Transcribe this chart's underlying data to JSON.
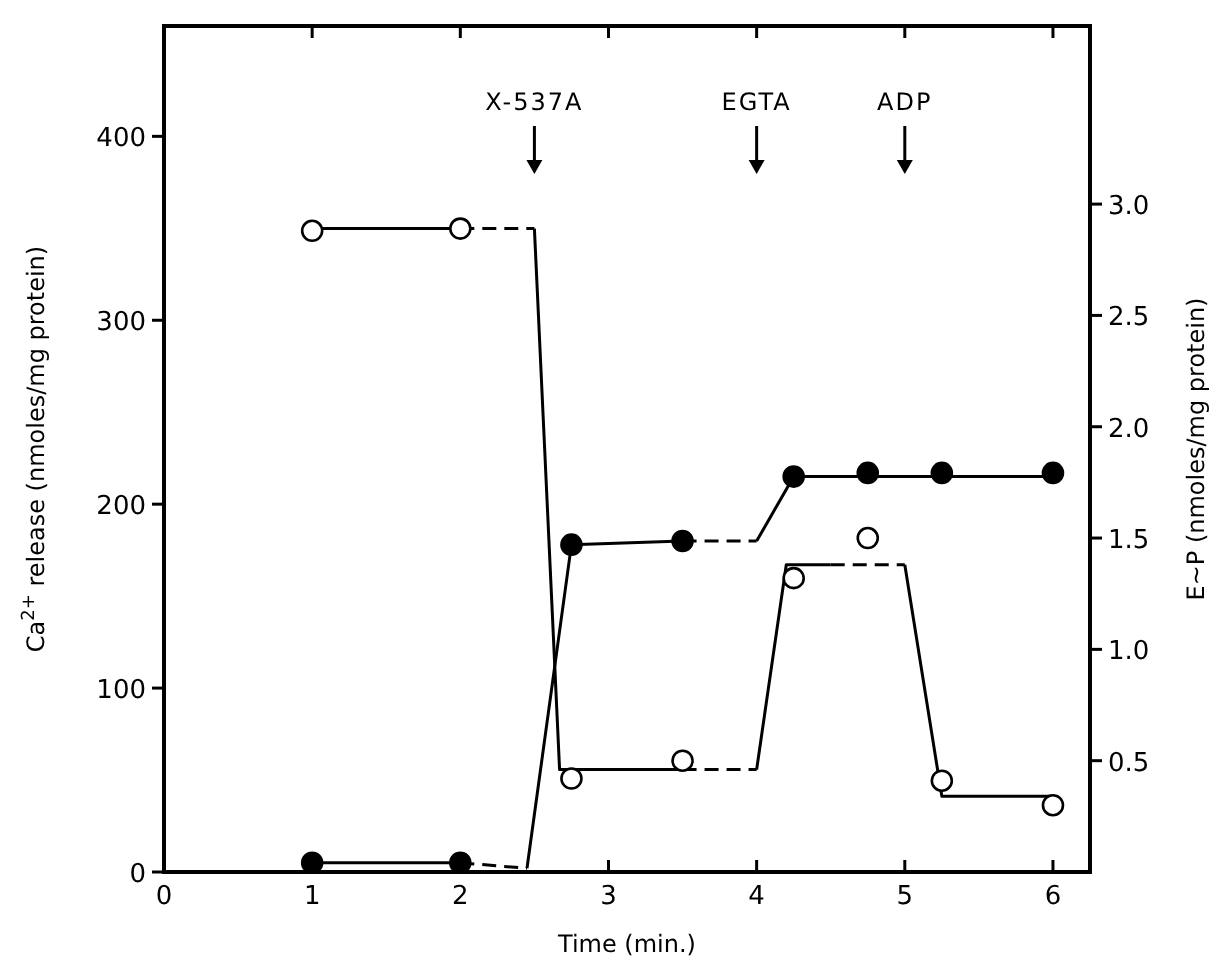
{
  "chart_data": {
    "type": "scatter",
    "xlabel": "Time (min.)",
    "ylabel": "Ca$^{2+}$ release (nmoles/mg protein)",
    "y2label": "E∼P (nmoles/mg protein)",
    "xlim": [
      0,
      6.25
    ],
    "xticks": [
      0,
      1,
      2,
      3,
      4,
      5,
      6
    ],
    "ylim": [
      0,
      460
    ],
    "yticks": [
      0,
      100,
      200,
      300,
      400
    ],
    "y2lim": [
      0,
      3.8
    ],
    "y2ticks": [
      0.5,
      {
        "value": 1,
        "label": "1.0"
      },
      1.5,
      {
        "value": 2,
        "label": "2.0"
      },
      2.5,
      {
        "value": 3,
        "label": "3.0"
      }
    ],
    "grid": false,
    "marker": "circle",
    "series": [
      {
        "type": "line",
        "color": "#000000",
        "line_style": "solid",
        "marker": "none",
        "x": [
          1,
          2
        ],
        "values": [
          5,
          5
        ]
      },
      {
        "type": "line",
        "color": "#000000",
        "line_style": "dashed",
        "marker": "none",
        "x": [
          2,
          2.45
        ],
        "values": [
          5,
          2
        ]
      },
      {
        "type": "line",
        "color": "#000000",
        "line_style": "solid",
        "marker": "none",
        "x": [
          2.45,
          2.75,
          3.5
        ],
        "values": [
          2,
          178,
          180
        ]
      },
      {
        "type": "line",
        "color": "#000000",
        "line_style": "dashed",
        "marker": "none",
        "x": [
          3.5,
          4
        ],
        "values": [
          180,
          180
        ]
      },
      {
        "type": "line",
        "color": "#000000",
        "line_style": "solid",
        "marker": "none",
        "x": [
          4,
          4.25,
          6
        ],
        "values": [
          180,
          215,
          215
        ]
      },
      {
        "type": "line",
        "color": "#000000",
        "line_style": "solid",
        "marker": "none",
        "axis": "y2",
        "x": [
          1,
          2
        ],
        "values": [
          2.89,
          2.89
        ]
      },
      {
        "type": "line",
        "color": "#000000",
        "line_style": "dashed",
        "marker": "none",
        "axis": "y2",
        "x": [
          2,
          2.5
        ],
        "values": [
          2.89,
          2.89
        ]
      },
      {
        "type": "line",
        "color": "#000000",
        "line_style": "solid",
        "marker": "none",
        "axis": "y2",
        "x": [
          2.5,
          2.67,
          3.5
        ],
        "values": [
          2.89,
          0.46,
          0.46
        ]
      },
      {
        "type": "line",
        "color": "#000000",
        "line_style": "dashed",
        "marker": "none",
        "axis": "y2",
        "x": [
          3.5,
          4
        ],
        "values": [
          0.46,
          0.46
        ]
      },
      {
        "type": "line",
        "color": "#000000",
        "line_style": "solid",
        "marker": "none",
        "axis": "y2",
        "x": [
          4,
          4.2,
          4.5
        ],
        "values": [
          0.46,
          1.38,
          1.38
        ]
      },
      {
        "type": "line",
        "color": "#000000",
        "line_style": "dashed",
        "marker": "none",
        "axis": "y2",
        "x": [
          4.5,
          5
        ],
        "values": [
          1.38,
          1.38
        ]
      },
      {
        "type": "line",
        "color": "#000000",
        "line_style": "solid",
        "marker": "none",
        "axis": "y2",
        "x": [
          5,
          5.25,
          6
        ],
        "values": [
          1.38,
          0.34,
          0.34
        ]
      },
      {
        "color": "#000000",
        "x": [
          1,
          2,
          2.75,
          3.5,
          4.25,
          4.75,
          5.25,
          6
        ],
        "values": [
          5,
          5,
          178,
          180,
          215,
          217,
          217,
          217
        ]
      },
      {
        "color": "#ffffff",
        "axis": "y2",
        "x": [
          1,
          2,
          2.75,
          3.5,
          4.25,
          4.75,
          5.25,
          6
        ],
        "values": [
          2.88,
          2.89,
          0.42,
          0.5,
          1.32,
          1.5,
          0.41,
          0.3
        ]
      }
    ],
    "annotations": [
      {
        "text": "X-537A",
        "x": 2.5
      },
      {
        "text": "EGTA",
        "x": 4
      },
      {
        "text": "ADP",
        "x": 5
      }
    ]
  }
}
